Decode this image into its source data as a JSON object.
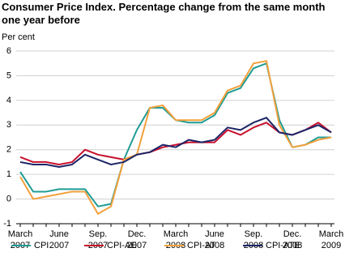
{
  "chart_data": {
    "type": "line",
    "title": "Consumer Price Index. Percentage change from the same month one year before",
    "y_label": "Per cent",
    "categories": [
      "March 2007",
      null,
      null,
      "June 2007",
      null,
      null,
      "Sep. 2007",
      null,
      null,
      "Dec. 2007",
      null,
      null,
      "March 2008",
      null,
      null,
      "June 2008",
      null,
      null,
      "Sep. 2008",
      null,
      null,
      "Dec. 2008",
      null,
      null,
      "March 2009"
    ],
    "series": [
      {
        "name": "CPI",
        "color": "#1f9c94",
        "values": [
          1.1,
          0.3,
          0.3,
          0.4,
          0.4,
          0.4,
          -0.3,
          -0.2,
          1.6,
          2.8,
          3.7,
          3.7,
          3.2,
          3.1,
          3.1,
          3.4,
          4.3,
          4.5,
          5.3,
          5.5,
          3.2,
          2.1,
          2.2,
          2.5,
          2.5
        ]
      },
      {
        "name": "CPI-AE",
        "color": "#c8102e",
        "values": [
          1.7,
          1.5,
          1.5,
          1.4,
          1.5,
          2.0,
          1.8,
          1.7,
          1.6,
          1.8,
          1.9,
          2.1,
          2.2,
          2.3,
          2.3,
          2.3,
          2.8,
          2.6,
          2.9,
          3.1,
          2.7,
          2.6,
          2.8,
          3.1,
          2.7
        ]
      },
      {
        "name": "CPI-AT",
        "color": "#f3a03c",
        "values": [
          0.9,
          0.0,
          0.1,
          0.2,
          0.3,
          0.3,
          -0.6,
          -0.3,
          1.6,
          1.8,
          3.7,
          3.8,
          3.2,
          3.2,
          3.2,
          3.5,
          4.4,
          4.6,
          5.5,
          5.6,
          3.0,
          2.1,
          2.2,
          2.4,
          2.5
        ]
      },
      {
        "name": "CPI-ATE",
        "color": "#1c2566",
        "values": [
          1.5,
          1.4,
          1.4,
          1.3,
          1.4,
          1.8,
          1.6,
          1.4,
          1.5,
          1.8,
          1.9,
          2.2,
          2.1,
          2.4,
          2.3,
          2.4,
          2.9,
          2.8,
          3.1,
          3.3,
          2.7,
          2.6,
          2.8,
          3.0,
          2.7
        ]
      }
    ],
    "ylim": [
      -1,
      6
    ],
    "yticks": [
      -1,
      0,
      1,
      2,
      3,
      4,
      5,
      6
    ],
    "grid": true
  }
}
